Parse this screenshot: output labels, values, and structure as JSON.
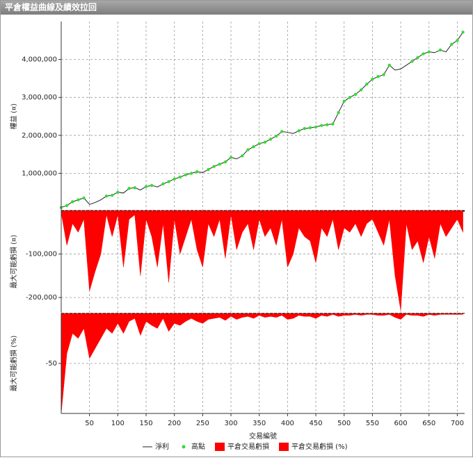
{
  "title": "平倉權益曲線及績效拉回",
  "chart_data": [
    {
      "type": "line",
      "ylabel": "權益 (¤)",
      "ylim": [
        0,
        5000000
      ],
      "yticks": [
        {
          "value": 1000000,
          "label": "1,000,000"
        },
        {
          "value": 2000000,
          "label": "2,000,000"
        },
        {
          "value": 3000000,
          "label": "3,000,000"
        },
        {
          "value": 4000000,
          "label": "4,000,000"
        }
      ],
      "grid": true,
      "x": [
        0,
        10,
        20,
        30,
        40,
        50,
        60,
        70,
        80,
        90,
        100,
        110,
        120,
        130,
        140,
        150,
        160,
        170,
        180,
        190,
        200,
        210,
        220,
        230,
        240,
        250,
        260,
        270,
        280,
        290,
        300,
        310,
        320,
        330,
        340,
        350,
        360,
        370,
        380,
        390,
        400,
        410,
        420,
        430,
        440,
        450,
        460,
        470,
        480,
        490,
        500,
        510,
        520,
        530,
        540,
        550,
        560,
        570,
        580,
        590,
        600,
        610,
        620,
        630,
        640,
        650,
        660,
        670,
        680,
        690,
        700,
        710
      ],
      "series": [
        {
          "name": "淨利",
          "color": "#222222",
          "values": [
            100000,
            150000,
            250000,
            300000,
            350000,
            180000,
            230000,
            300000,
            400000,
            420000,
            500000,
            480000,
            600000,
            620000,
            560000,
            650000,
            680000,
            640000,
            720000,
            780000,
            850000,
            900000,
            960000,
            1000000,
            1040000,
            1020000,
            1100000,
            1180000,
            1240000,
            1300000,
            1420000,
            1380000,
            1460000,
            1620000,
            1700000,
            1780000,
            1820000,
            1900000,
            1980000,
            2100000,
            2080000,
            2050000,
            2120000,
            2180000,
            2200000,
            2220000,
            2260000,
            2280000,
            2300000,
            2600000,
            2900000,
            3000000,
            3080000,
            3200000,
            3350000,
            3480000,
            3550000,
            3600000,
            3850000,
            3720000,
            3750000,
            3850000,
            3950000,
            4050000,
            4150000,
            4200000,
            4180000,
            4250000,
            4200000,
            4400000,
            4500000,
            4720000
          ]
        },
        {
          "name": "高點",
          "type": "scatter",
          "color": "#33dd33",
          "x": [
            0,
            10,
            20,
            30,
            40,
            80,
            90,
            100,
            120,
            130,
            150,
            160,
            180,
            190,
            200,
            210,
            220,
            230,
            240,
            260,
            270,
            280,
            290,
            300,
            320,
            330,
            340,
            350,
            360,
            370,
            380,
            390,
            420,
            430,
            440,
            450,
            460,
            470,
            480,
            490,
            500,
            510,
            520,
            530,
            540,
            550,
            560,
            570,
            580,
            620,
            630,
            640,
            650,
            670,
            690,
            700,
            710
          ],
          "values": [
            100000,
            150000,
            250000,
            300000,
            350000,
            400000,
            420000,
            500000,
            600000,
            620000,
            650000,
            680000,
            720000,
            780000,
            850000,
            900000,
            960000,
            1000000,
            1040000,
            1100000,
            1180000,
            1240000,
            1300000,
            1420000,
            1460000,
            1620000,
            1700000,
            1780000,
            1820000,
            1900000,
            1980000,
            2100000,
            2120000,
            2180000,
            2200000,
            2220000,
            2260000,
            2280000,
            2300000,
            2600000,
            2900000,
            3000000,
            3080000,
            3200000,
            3350000,
            3480000,
            3550000,
            3600000,
            3850000,
            3950000,
            4050000,
            4150000,
            4200000,
            4250000,
            4400000,
            4500000,
            4720000
          ]
        }
      ]
    },
    {
      "type": "area",
      "ylabel": "最大可能虧損 (¤)",
      "ylim": [
        -235000,
        0
      ],
      "yticks": [
        {
          "value": -100000,
          "label": "-100,000"
        },
        {
          "value": -200000,
          "label": "-200,000"
        }
      ],
      "grid": true,
      "x": [
        0,
        10,
        20,
        30,
        40,
        50,
        60,
        70,
        80,
        90,
        100,
        110,
        120,
        130,
        140,
        150,
        160,
        170,
        180,
        190,
        200,
        210,
        220,
        230,
        240,
        250,
        260,
        270,
        280,
        290,
        300,
        310,
        320,
        330,
        340,
        350,
        360,
        370,
        380,
        390,
        400,
        410,
        420,
        430,
        440,
        450,
        460,
        470,
        480,
        490,
        500,
        510,
        520,
        530,
        540,
        550,
        560,
        570,
        580,
        590,
        600,
        610,
        620,
        630,
        640,
        650,
        660,
        670,
        680,
        690,
        700,
        710
      ],
      "series": [
        {
          "name": "平倉交易虧損",
          "color": "#ff0000",
          "values": [
            -5000,
            -80000,
            -30000,
            -50000,
            -20000,
            -185000,
            -140000,
            -100000,
            -10000,
            -60000,
            -10000,
            -130000,
            -20000,
            -10000,
            -150000,
            -20000,
            -60000,
            -130000,
            -30000,
            -165000,
            -20000,
            -100000,
            -60000,
            -20000,
            -90000,
            -130000,
            -30000,
            -60000,
            -20000,
            -110000,
            -10000,
            -90000,
            -50000,
            -30000,
            -90000,
            -20000,
            -60000,
            -40000,
            -80000,
            -20000,
            -130000,
            -100000,
            -40000,
            -60000,
            -70000,
            -120000,
            -40000,
            -60000,
            -20000,
            -90000,
            -40000,
            -50000,
            -30000,
            -60000,
            -30000,
            -20000,
            -50000,
            -80000,
            -20000,
            -150000,
            -230000,
            -30000,
            -90000,
            -70000,
            -120000,
            -60000,
            -110000,
            -30000,
            -60000,
            -40000,
            -20000,
            -50000
          ]
        }
      ]
    },
    {
      "type": "area",
      "ylabel": "最大可能虧損 (%)",
      "ylim": [
        -100,
        0
      ],
      "yticks": [
        -50
      ],
      "grid": true,
      "xlabel": "交易編號",
      "xlim": [
        0,
        713
      ],
      "xticks": [
        50,
        100,
        150,
        200,
        250,
        300,
        350,
        400,
        450,
        500,
        550,
        600,
        650,
        700
      ],
      "x": [
        0,
        10,
        20,
        30,
        40,
        50,
        60,
        70,
        80,
        90,
        100,
        110,
        120,
        130,
        140,
        150,
        160,
        170,
        180,
        190,
        200,
        210,
        220,
        230,
        240,
        250,
        260,
        270,
        280,
        290,
        300,
        310,
        320,
        330,
        340,
        350,
        360,
        370,
        380,
        390,
        400,
        410,
        420,
        430,
        440,
        450,
        460,
        470,
        480,
        490,
        500,
        510,
        520,
        530,
        540,
        550,
        560,
        570,
        580,
        590,
        600,
        610,
        620,
        630,
        640,
        650,
        660,
        670,
        680,
        690,
        700,
        710
      ],
      "series": [
        {
          "name": "平倉交易虧損 (%)",
          "color": "#ff0000",
          "values": [
            -100,
            -40,
            -20,
            -25,
            -15,
            -45,
            -35,
            -25,
            -15,
            -20,
            -10,
            -20,
            -8,
            -5,
            -22,
            -8,
            -12,
            -15,
            -5,
            -18,
            -10,
            -12,
            -8,
            -5,
            -8,
            -10,
            -6,
            -5,
            -4,
            -7,
            -3,
            -6,
            -4,
            -3,
            -5,
            -2,
            -4,
            -3,
            -4,
            -2,
            -6,
            -5,
            -2,
            -3,
            -3,
            -5,
            -2,
            -3,
            -1,
            -3,
            -2,
            -2,
            -1,
            -2,
            -1,
            -1,
            -2,
            -2,
            -1,
            -4,
            -6,
            -1,
            -2,
            -2,
            -3,
            -1,
            -2,
            -1,
            -1,
            -1,
            -1,
            -1
          ]
        }
      ]
    }
  ]
}
